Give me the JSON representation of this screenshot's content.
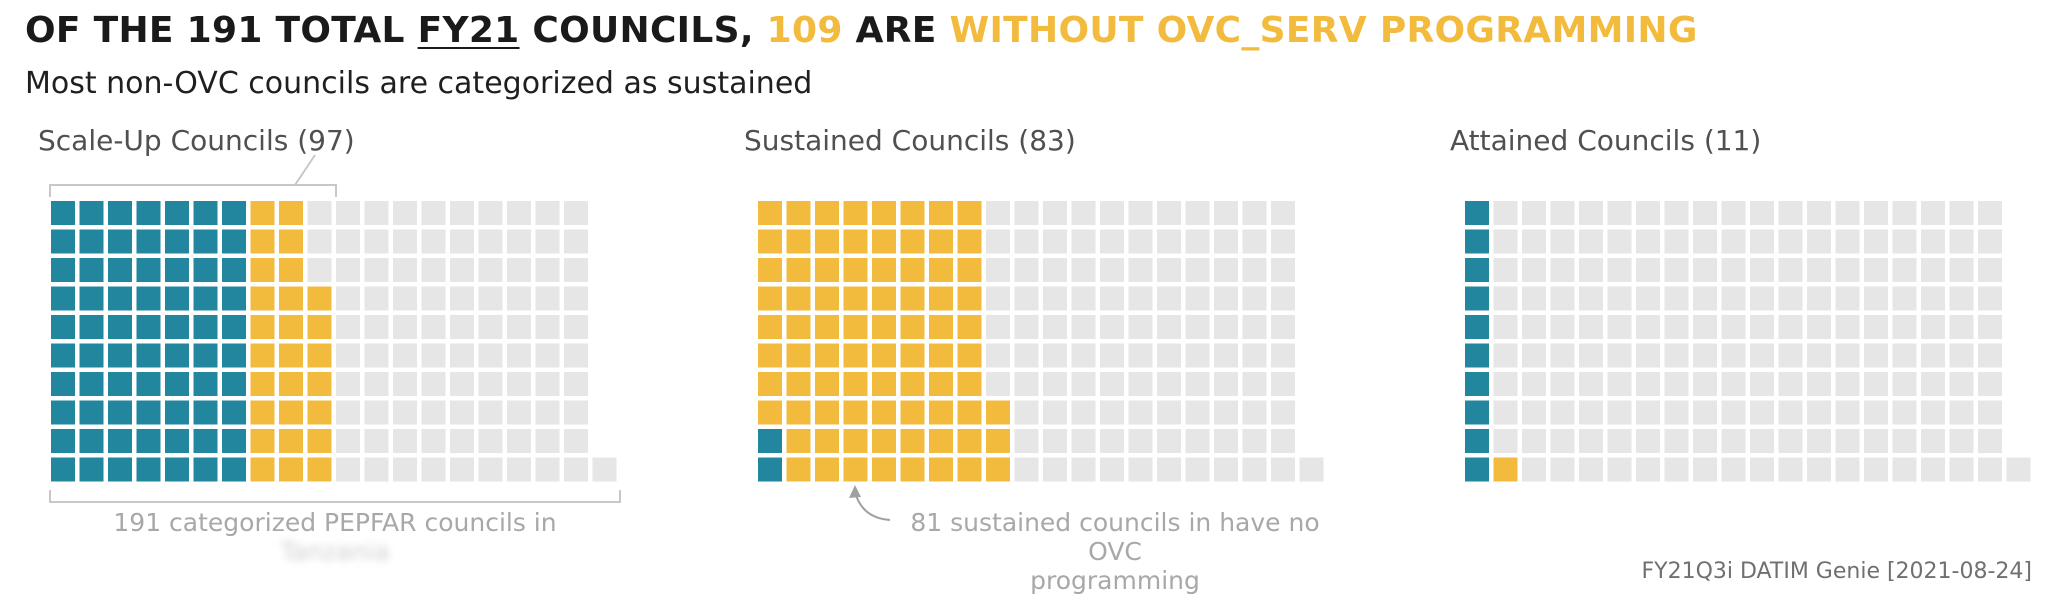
{
  "title": {
    "p1": "OF THE 191 TOTAL ",
    "p2": "FY21",
    "p3": " COUNCILS, ",
    "p4": "109",
    "p5": " ARE ",
    "p6": "WITHOUT OVC_SERV PROGRAMMING"
  },
  "subtitle": "Most non-OVC councils are categorized as sustained",
  "colors": {
    "with_ovc": "#23869f",
    "without_ovc": "#f2bb3d",
    "empty": "#e6e6e6"
  },
  "chart_data": {
    "type": "waffle",
    "total_councils": 191,
    "panels": [
      {
        "title": "Scale-Up Councils (97)",
        "with_ovc_serv": 70,
        "without_ovc_serv": 27,
        "total": 97
      },
      {
        "title": "Sustained Councils (83)",
        "with_ovc_serv": 2,
        "without_ovc_serv": 81,
        "total": 83
      },
      {
        "title": "Attained Councils (11)",
        "with_ovc_serv": 10,
        "without_ovc_serv": 1,
        "total": 11
      }
    ]
  },
  "annotations": {
    "bracket_label_line1": "191 categorized PEPFAR councils in",
    "bracket_label_line2": "Tanzania",
    "sustained_note_line1": "81 sustained councils in have no OVC",
    "sustained_note_line2": "programming"
  },
  "source": "FY21Q3i DATIM Genie [2021-08-24]"
}
